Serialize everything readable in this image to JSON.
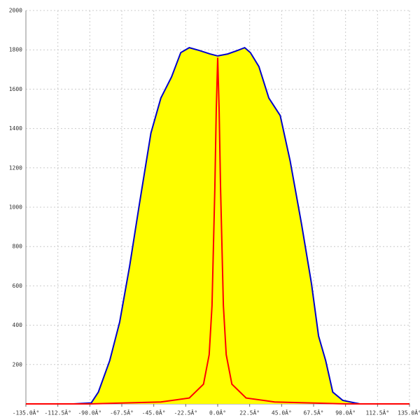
{
  "chart_data": {
    "type": "line",
    "xlim": [
      -135,
      135
    ],
    "xticks": [
      {
        "value": -135,
        "label": "-135.0Â°"
      },
      {
        "value": -112.5,
        "label": "-112.5Â°"
      },
      {
        "value": -90,
        "label": "-90.0Â°"
      },
      {
        "value": -67.5,
        "label": "-67.5Â°"
      },
      {
        "value": -45,
        "label": "-45.0Â°"
      },
      {
        "value": -22.5,
        "label": "-22.5Â°"
      },
      {
        "value": 0,
        "label": "0.0Â°"
      },
      {
        "value": 22.5,
        "label": "22.5Â°"
      },
      {
        "value": 45,
        "label": "45.0Â°"
      },
      {
        "value": 67.5,
        "label": "67.5Â°"
      },
      {
        "value": 90,
        "label": "90.0Â°"
      },
      {
        "value": 112.5,
        "label": "112.5Â°"
      },
      {
        "value": 135,
        "label": "135.0Â°"
      }
    ],
    "ylim": [
      0,
      2000
    ],
    "yticks": [
      200,
      400,
      600,
      800,
      1000,
      1200,
      1400,
      1600,
      1800,
      2000
    ],
    "grid": true,
    "series": [
      {
        "type": "area",
        "color": "#0000cc",
        "fill": "#ffff00",
        "x": [
          -101.5,
          -89,
          -84,
          -76,
          -69,
          -62,
          -55,
          -47,
          -40,
          -32.5,
          -26,
          -20,
          -13,
          -5.4,
          0,
          7,
          14,
          19,
          23,
          29,
          36,
          44,
          51,
          59,
          66,
          71,
          76,
          81,
          88,
          98,
          100
        ],
        "values": [
          0,
          5,
          60,
          220,
          416,
          700,
          1021,
          1377,
          1555,
          1662,
          1786,
          1811,
          1797,
          1779,
          1769,
          1779,
          1797,
          1811,
          1786,
          1715,
          1555,
          1466,
          1235,
          915,
          612,
          345,
          220,
          60,
          18,
          3,
          0
        ]
      },
      {
        "type": "line",
        "color": "#ff0000",
        "x": [
          -135,
          -90,
          -40,
          -20,
          -10,
          -6,
          -4,
          -2,
          -1,
          0,
          1,
          2,
          4,
          6,
          10,
          20,
          40,
          90,
          135
        ],
        "values": [
          0,
          0,
          10,
          30,
          100,
          250,
          500,
          1100,
          1500,
          1760,
          1500,
          1100,
          500,
          250,
          100,
          30,
          10,
          0,
          0
        ]
      }
    ]
  }
}
